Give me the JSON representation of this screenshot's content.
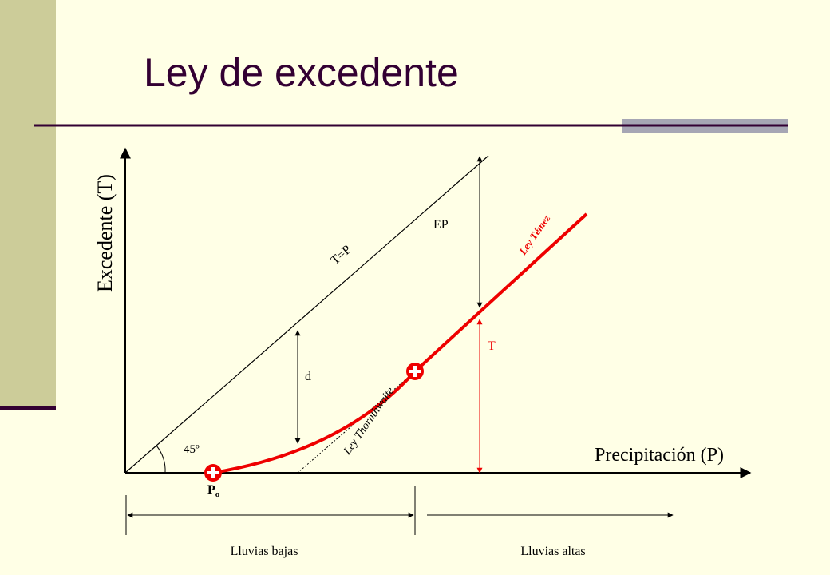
{
  "header": {
    "title": "Ley de excedente"
  },
  "axes": {
    "y_label": "Excedente (T)",
    "x_label": "Precipitación (P)"
  },
  "annotations": {
    "line_tp": "T=P",
    "ep": "EP",
    "temez": "Ley Témez",
    "t": "T",
    "d": "d",
    "thornthwaite": "Ley Thornthwaite",
    "angle": "45º",
    "po": {
      "main": "P",
      "sub": "o"
    }
  },
  "ranges": {
    "low": "Lluvias bajas",
    "high": "Lluvias altas"
  }
}
